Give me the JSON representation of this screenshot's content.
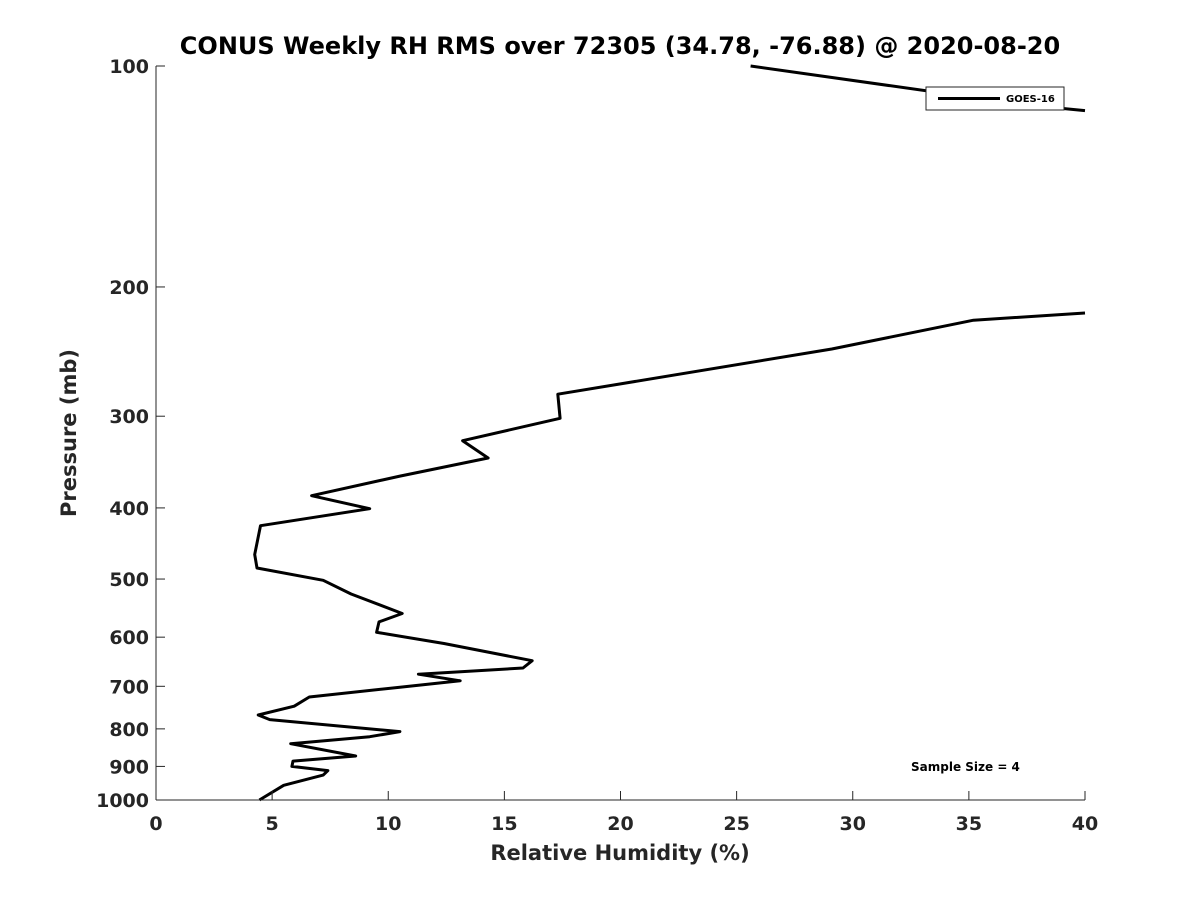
{
  "chart_data": {
    "type": "line",
    "title": "CONUS Weekly RH RMS over 72305 (34.78, -76.88) @ 2020-08-20",
    "xlabel": "Relative Humidity (%)",
    "ylabel": "Pressure (mb)",
    "xlim": [
      0,
      40
    ],
    "ylim": [
      100,
      1000
    ],
    "y_scale": "log",
    "y_reversed": true,
    "grid": false,
    "legend_position": "top-right",
    "annotation": "Sample Size = 4",
    "x_ticks": [
      {
        "value": 0,
        "label": "0"
      },
      {
        "value": 5,
        "label": "5"
      },
      {
        "value": 10,
        "label": "10"
      },
      {
        "value": 15,
        "label": "15"
      },
      {
        "value": 20,
        "label": "20"
      },
      {
        "value": 25,
        "label": "25"
      },
      {
        "value": 30,
        "label": "30"
      },
      {
        "value": 35,
        "label": "35"
      },
      {
        "value": 40,
        "label": "40"
      }
    ],
    "y_ticks": [
      {
        "value": 100,
        "label": "100"
      },
      {
        "value": 200,
        "label": "200"
      },
      {
        "value": 300,
        "label": "300"
      },
      {
        "value": 400,
        "label": "400"
      },
      {
        "value": 500,
        "label": "500"
      },
      {
        "value": 600,
        "label": "600"
      },
      {
        "value": 700,
        "label": "700"
      },
      {
        "value": 800,
        "label": "800"
      },
      {
        "value": 900,
        "label": "900"
      },
      {
        "value": 1000,
        "label": "1000"
      }
    ],
    "series": [
      {
        "name": "GOES-16",
        "color": "#000000",
        "segments": [
          [
            [
              25.6,
              100
            ],
            [
              37.5,
              113
            ],
            [
              40,
              115
            ]
          ],
          [
            [
              40,
              217
            ],
            [
              35.2,
              222
            ],
            [
              29.1,
              243
            ],
            [
              17.3,
              280
            ],
            [
              17.4,
              302
            ],
            [
              13.2,
              324
            ],
            [
              14.3,
              342
            ],
            [
              10.5,
              362
            ],
            [
              6.7,
              385
            ],
            [
              9.2,
              401
            ],
            [
              4.5,
              423
            ],
            [
              4.25,
              463
            ],
            [
              4.35,
              483
            ],
            [
              7.2,
              502
            ],
            [
              8.4,
              524
            ],
            [
              10.6,
              557
            ],
            [
              9.6,
              572
            ],
            [
              9.5,
              591
            ],
            [
              12.4,
              612
            ],
            [
              16.2,
              646
            ],
            [
              15.8,
              661
            ],
            [
              11.3,
              674
            ],
            [
              13.1,
              688
            ],
            [
              10.5,
              702
            ],
            [
              6.6,
              724
            ],
            [
              5.95,
              745
            ],
            [
              4.4,
              766
            ],
            [
              4.9,
              777
            ],
            [
              10.5,
              807
            ],
            [
              9.2,
              820
            ],
            [
              5.8,
              838
            ],
            [
              8.6,
              871
            ],
            [
              5.9,
              885
            ],
            [
              5.85,
              900
            ],
            [
              7.4,
              912
            ],
            [
              7.2,
              925
            ],
            [
              5.5,
              955
            ],
            [
              4.45,
              1000
            ]
          ]
        ]
      }
    ]
  }
}
